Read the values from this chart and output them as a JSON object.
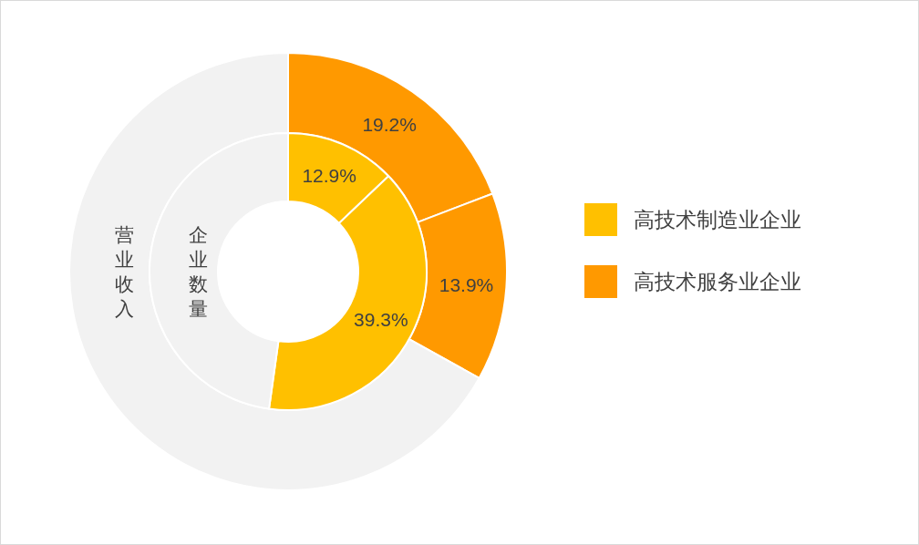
{
  "chart_data": {
    "type": "donut",
    "categories": [
      "高技术制造业企业",
      "高技术服务业企业",
      null
    ],
    "colors": [
      "#ffc000",
      "#ff9900"
    ],
    "legend": "right",
    "series": [
      {
        "name": "企业数量",
        "values": [
          12.9,
          39.3,
          47.8
        ],
        "colors": [
          "#ffc000",
          "#ffc000",
          "#f2f2f2"
        ],
        "value_labels": [
          "12.9%",
          "39.3%",
          null
        ]
      },
      {
        "name": "营业收入",
        "values": [
          19.2,
          13.9,
          66.9
        ],
        "colors": [
          "#ff9900",
          "#ff9900",
          "#f2f2f2"
        ],
        "value_labels": [
          "19.2%",
          "13.9%",
          null
        ]
      }
    ]
  }
}
